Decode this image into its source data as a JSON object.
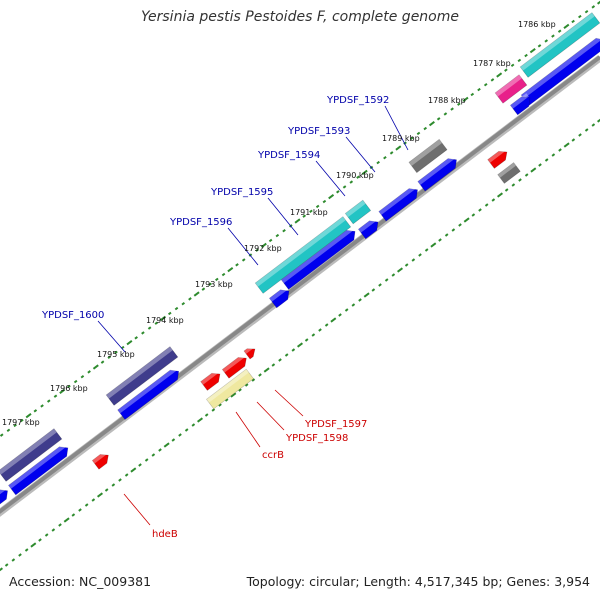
{
  "title": "Yersinia pestis Pestoides F, complete genome",
  "footer": {
    "accession": "Accession: NC_009381",
    "summary": "Topology: circular; Length: 4,517,345 bp; Genes: 3,954"
  },
  "colors": {
    "backbone": "#888888",
    "tick": "#2e8b2e",
    "gene_blue": "#0000ee",
    "cds_cyan": "#22c4c4",
    "cds_navy": "#3f3c8c",
    "cds_gray": "#6e6e6e",
    "cds_magenta": "#e8208a",
    "gene_red": "#ee0000",
    "rna_yellow": "#efe8a0",
    "label_blue": "#0000aa",
    "label_red": "#cc0000"
  },
  "kbp_labels": [
    "1786 kbp",
    "1787 kbp",
    "1788 kbp",
    "1789 kbp",
    "1790 kbp",
    "1791 kbp",
    "1792 kbp",
    "1793 kbp",
    "1794 kbp",
    "1795 kbp",
    "1796 kbp",
    "1797 kbp"
  ],
  "gene_labels_forward": [
    "YPDSF_1592",
    "YPDSF_1593",
    "YPDSF_1594",
    "YPDSF_1595",
    "YPDSF_1596",
    "YPDSF_1600"
  ],
  "gene_labels_reverse": [
    "YPDSF_1597",
    "YPDSF_1598",
    "ccrB",
    "hdeB"
  ]
}
